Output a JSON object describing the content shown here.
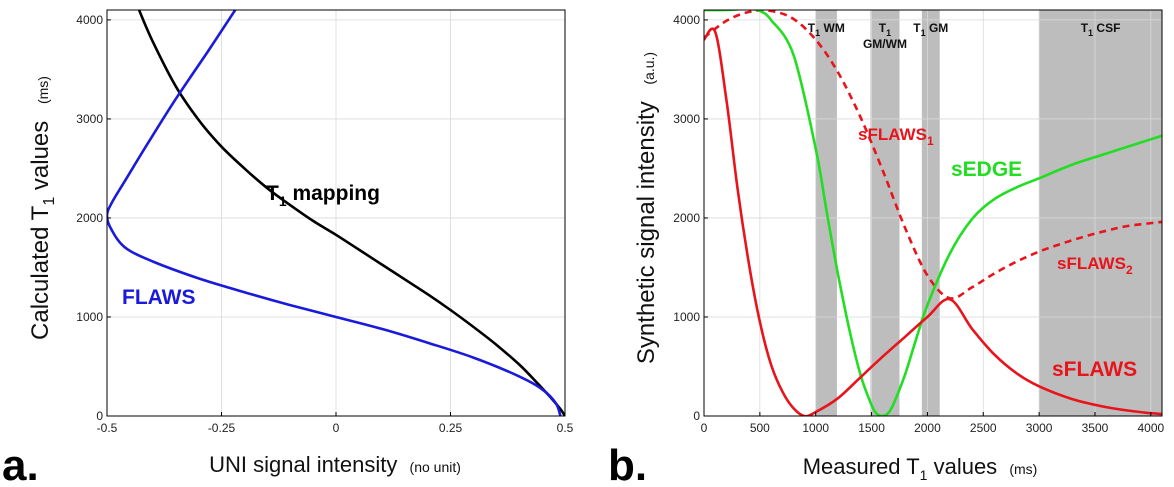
{
  "chart_data": [
    {
      "panel_label": "a.",
      "type": "line",
      "xlabel": "UNI signal intensity",
      "xlabel_unit": "(no unit)",
      "ylabel": "Calculated T",
      "ylabel_sub": "1",
      "ylabel_rest": " values",
      "ylabel_unit": "(ms)",
      "xlim": [
        -0.5,
        0.5
      ],
      "ylim": [
        0,
        4100
      ],
      "xticks": [
        -0.5,
        -0.25,
        0,
        0.25,
        0.5
      ],
      "xtick_labels": [
        "-0.5",
        "-0.25",
        "0",
        "0.25",
        "0.5"
      ],
      "yticks": [
        0,
        1000,
        2000,
        3000,
        4000
      ],
      "ytick_labels": [
        "0",
        "1000",
        "2000",
        "3000",
        "4000"
      ],
      "grid": true,
      "series": [
        {
          "name": "T1 mapping",
          "label_main": "T",
          "label_sub": "1",
          "label_rest": " mapping",
          "color": "#000000",
          "x": [
            -0.43,
            -0.4,
            -0.35,
            -0.3,
            -0.25,
            -0.2,
            -0.15,
            -0.1,
            -0.05,
            0.0,
            0.05,
            0.1,
            0.15,
            0.2,
            0.25,
            0.3,
            0.35,
            0.4,
            0.44,
            0.47,
            0.49,
            0.5
          ],
          "y": [
            4100,
            3780,
            3330,
            2990,
            2720,
            2500,
            2300,
            2130,
            1970,
            1830,
            1680,
            1530,
            1380,
            1230,
            1070,
            900,
            720,
            520,
            330,
            180,
            70,
            0
          ]
        },
        {
          "name": "FLAWS",
          "color": "#1a1adc",
          "x": [
            -0.22,
            -0.28,
            -0.35,
            -0.41,
            -0.46,
            -0.49,
            -0.5,
            -0.49,
            -0.46,
            -0.4,
            -0.3,
            -0.2,
            -0.1,
            0.0,
            0.1,
            0.2,
            0.3,
            0.4,
            0.45,
            0.48,
            0.49
          ],
          "y": [
            4100,
            3680,
            3200,
            2760,
            2380,
            2150,
            2020,
            1880,
            1700,
            1560,
            1390,
            1250,
            1120,
            1000,
            880,
            740,
            590,
            400,
            270,
            130,
            0
          ]
        }
      ]
    },
    {
      "panel_label": "b.",
      "type": "line",
      "xlabel": "Measured T",
      "xlabel_sub": "1",
      "xlabel_rest": " values",
      "xlabel_unit": "(ms)",
      "ylabel": "Synthetic signal intensity",
      "ylabel_unit": "(a.u.)",
      "xlim": [
        0,
        4100
      ],
      "ylim": [
        0,
        4100
      ],
      "xticks": [
        0,
        500,
        1000,
        1500,
        2000,
        2500,
        3000,
        3500,
        4000
      ],
      "xtick_labels": [
        "0",
        "500",
        "1000",
        "1500",
        "2000",
        "2500",
        "3000",
        "3500",
        "4000"
      ],
      "yticks": [
        0,
        1000,
        2000,
        3000,
        4000
      ],
      "ytick_labels": [
        "0",
        "1000",
        "2000",
        "3000",
        "4000"
      ],
      "grid": true,
      "regions": [
        {
          "x0": 1000,
          "x1": 1190,
          "main": "T",
          "sub": "1",
          "rest": " WM",
          "line2": ""
        },
        {
          "x0": 1490,
          "x1": 1750,
          "main": "T",
          "sub": "1",
          "rest": "",
          "line2": "GM/WM"
        },
        {
          "x0": 1950,
          "x1": 2110,
          "main": "T",
          "sub": "1",
          "rest": " GM",
          "line2": ""
        },
        {
          "x0": 3000,
          "x1": 4100,
          "main": "T",
          "sub": "1",
          "rest": " CSF",
          "line2": ""
        }
      ],
      "region_color": "#bdbdbd",
      "series": [
        {
          "name": "sFLAWS1",
          "label_main": "sFLAWS",
          "label_sub": "1",
          "color": "#e8141c",
          "dashed": true,
          "x": [
            0,
            200,
            400,
            600,
            800,
            1000,
            1200,
            1400,
            1600,
            1800,
            2000,
            2200,
            2400,
            2600,
            2800,
            3000,
            3200,
            3400,
            3600,
            3800,
            4100
          ],
          "y": [
            3820,
            3990,
            4080,
            4090,
            4010,
            3800,
            3470,
            3020,
            2480,
            1900,
            1420,
            1190,
            1300,
            1440,
            1560,
            1660,
            1740,
            1810,
            1870,
            1920,
            1960
          ]
        },
        {
          "name": "sFLAWS2",
          "label_main": "sFLAWS",
          "label_sub": "2",
          "color": "#e8141c",
          "dashed": true,
          "x": [],
          "y": []
        },
        {
          "name": "sEDGE",
          "label_main": "sEDGE",
          "label_sub": "",
          "color": "#22dd22",
          "dashed": false,
          "x": [
            0,
            200,
            400,
            500,
            600,
            800,
            1000,
            1100,
            1200,
            1300,
            1400,
            1500,
            1550,
            1600,
            1650,
            1700,
            1800,
            1900,
            2000,
            2200,
            2400,
            2600,
            2800,
            3000,
            3300,
            3600,
            4100
          ],
          "y": [
            4100,
            4100,
            4110,
            4090,
            4000,
            3650,
            2700,
            2050,
            1430,
            880,
            420,
            110,
            20,
            0,
            30,
            130,
            420,
            780,
            1120,
            1640,
            1990,
            2190,
            2310,
            2400,
            2540,
            2650,
            2830
          ]
        },
        {
          "name": "sFLAWS",
          "label_main": "sFLAWS",
          "label_sub": "",
          "color": "#e8141c",
          "dashed": false,
          "x": [
            0,
            100,
            200,
            300,
            400,
            500,
            600,
            700,
            800,
            900,
            1000,
            1200,
            1400,
            1600,
            1800,
            2000,
            2200,
            2400,
            2600,
            2800,
            3000,
            3300,
            3600,
            3900,
            4100
          ],
          "y": [
            3800,
            3880,
            3200,
            2300,
            1550,
            950,
            520,
            250,
            80,
            0,
            40,
            180,
            390,
            600,
            800,
            1000,
            1180,
            880,
            620,
            430,
            300,
            170,
            90,
            40,
            20
          ]
        }
      ]
    }
  ]
}
